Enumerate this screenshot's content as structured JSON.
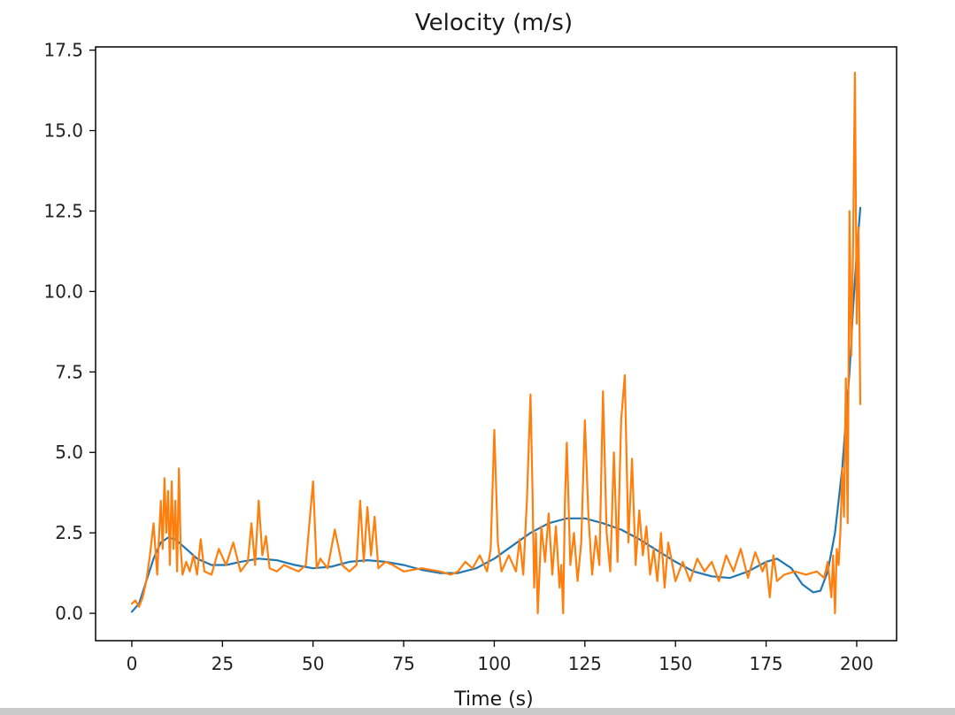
{
  "chart_data": {
    "type": "line",
    "title": "Velocity (m/s)",
    "xlabel": "Time (s)",
    "ylabel": "",
    "xlim": [
      -10,
      211
    ],
    "ylim": [
      -0.85,
      17.6
    ],
    "xticks": [
      0,
      25,
      50,
      75,
      100,
      125,
      150,
      175,
      200
    ],
    "xtick_labels": [
      "0",
      "25",
      "50",
      "75",
      "100",
      "125",
      "150",
      "175",
      "200"
    ],
    "yticks": [
      0.0,
      2.5,
      5.0,
      7.5,
      10.0,
      12.5,
      15.0,
      17.5
    ],
    "ytick_labels": [
      "0.0",
      "2.5",
      "5.0",
      "7.5",
      "10.0",
      "12.5",
      "15.0",
      "17.5"
    ],
    "grid": false,
    "colors": {
      "smooth": "#1f77b4",
      "raw": "#ff7f0e"
    },
    "series": [
      {
        "x": [
          0,
          2,
          4,
          6,
          8,
          10,
          12,
          15,
          18,
          22,
          26,
          30,
          35,
          40,
          45,
          50,
          55,
          60,
          65,
          70,
          75,
          80,
          85,
          90,
          95,
          100,
          105,
          110,
          115,
          120,
          125,
          130,
          135,
          140,
          145,
          150,
          155,
          160,
          165,
          170,
          175,
          178,
          182,
          185,
          188,
          190,
          192,
          194,
          196,
          198,
          199,
          200,
          201
        ],
        "y": [
          0.05,
          0.3,
          1.0,
          1.7,
          2.2,
          2.35,
          2.3,
          2.0,
          1.7,
          1.5,
          1.5,
          1.6,
          1.7,
          1.65,
          1.5,
          1.4,
          1.45,
          1.6,
          1.65,
          1.6,
          1.5,
          1.35,
          1.25,
          1.25,
          1.4,
          1.7,
          2.1,
          2.5,
          2.8,
          2.95,
          2.95,
          2.8,
          2.6,
          2.3,
          1.95,
          1.6,
          1.3,
          1.15,
          1.1,
          1.3,
          1.6,
          1.7,
          1.4,
          0.9,
          0.65,
          0.7,
          1.3,
          2.5,
          4.5,
          7.5,
          9.5,
          11.2,
          12.6
        ]
      },
      {
        "x": [
          0,
          1,
          2,
          3,
          4,
          5,
          6,
          7,
          8,
          8.5,
          9,
          9.5,
          10,
          10.5,
          11,
          11.5,
          12,
          12.5,
          13,
          13.5,
          14,
          15,
          16,
          17,
          18,
          19,
          20,
          22,
          24,
          26,
          28,
          30,
          32,
          33,
          34,
          35,
          36,
          37,
          38,
          40,
          42,
          44,
          46,
          48,
          50,
          51,
          52,
          54,
          56,
          58,
          60,
          62,
          63,
          64,
          65,
          66,
          67,
          68,
          70,
          72,
          75,
          80,
          85,
          88,
          90,
          92,
          94,
          96,
          98,
          99,
          100,
          101,
          102,
          104,
          106,
          107,
          108,
          109,
          110,
          110.5,
          111,
          111.5,
          112,
          113,
          114,
          115,
          116,
          117,
          118,
          118.5,
          119,
          119.5,
          120,
          121,
          122,
          123,
          124,
          125,
          126,
          127,
          128,
          129,
          130,
          131,
          132,
          133,
          134,
          135,
          136,
          137,
          138,
          139,
          140,
          141,
          142,
          143,
          144,
          145,
          146,
          147,
          148,
          150,
          152,
          154,
          156,
          158,
          160,
          162,
          164,
          166,
          168,
          170,
          172,
          174,
          175,
          176,
          177,
          178,
          180,
          183,
          186,
          189,
          191,
          192,
          193,
          193.5,
          194,
          194.5,
          195,
          195.5,
          196,
          196.5,
          197,
          197.5,
          198,
          198.5,
          199,
          199.5,
          200,
          200.5,
          201
        ],
        "y": [
          0.3,
          0.4,
          0.2,
          0.5,
          1.0,
          1.8,
          2.8,
          1.2,
          3.5,
          2.0,
          4.2,
          2.5,
          3.8,
          1.5,
          4.1,
          2.0,
          3.5,
          1.3,
          4.5,
          2.0,
          1.2,
          1.6,
          1.3,
          1.8,
          1.2,
          2.3,
          1.3,
          1.2,
          2.0,
          1.5,
          2.2,
          1.3,
          1.6,
          2.8,
          1.5,
          3.5,
          1.8,
          2.4,
          1.4,
          1.3,
          1.5,
          1.4,
          1.3,
          1.5,
          4.1,
          1.4,
          1.7,
          1.4,
          2.6,
          1.5,
          1.3,
          1.5,
          3.5,
          1.6,
          3.3,
          1.8,
          3.0,
          1.4,
          1.6,
          1.5,
          1.3,
          1.4,
          1.3,
          1.2,
          1.3,
          1.6,
          1.4,
          1.8,
          1.3,
          2.0,
          5.7,
          2.2,
          1.3,
          1.8,
          1.3,
          2.3,
          1.2,
          3.5,
          6.8,
          4.0,
          0.8,
          2.5,
          0.0,
          2.7,
          1.6,
          3.1,
          1.2,
          2.7,
          0.8,
          1.5,
          0.0,
          3.5,
          5.3,
          1.5,
          2.5,
          1.0,
          2.2,
          6.0,
          3.0,
          1.2,
          2.4,
          1.5,
          6.9,
          2.5,
          1.3,
          5.0,
          1.6,
          6.0,
          7.4,
          2.2,
          4.8,
          1.5,
          3.2,
          1.8,
          2.7,
          1.2,
          2.0,
          1.0,
          2.5,
          0.8,
          2.2,
          1.0,
          1.6,
          1.0,
          1.7,
          1.3,
          1.6,
          1.0,
          1.8,
          1.3,
          2.0,
          1.1,
          1.9,
          1.3,
          1.6,
          0.5,
          1.8,
          1.0,
          1.2,
          1.3,
          1.2,
          1.3,
          1.1,
          1.6,
          0.5,
          1.8,
          0.0,
          2.0,
          1.5,
          2.5,
          4.5,
          3.0,
          7.3,
          2.8,
          12.5,
          8.0,
          11.5,
          16.8,
          9.0,
          12.0,
          6.5
        ]
      }
    ]
  }
}
